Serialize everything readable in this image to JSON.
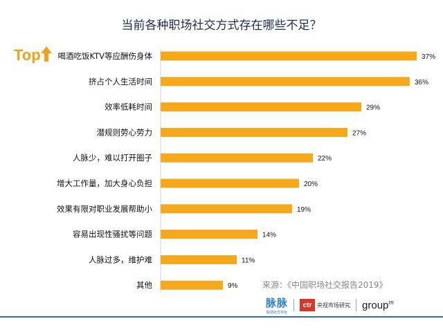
{
  "title": "当前各种职场社交方式存在哪些不足？",
  "top_badge": "Top",
  "source": "来源：《中国职场社交报告2019》",
  "logos": {
    "maimai": "脉脉",
    "maimai_sub": "职场社交平台",
    "ctr": "ctr",
    "ctr_name": "央视市场研究",
    "groupm": "group",
    "groupm_sup": "m"
  },
  "colors": {
    "bar": "#f5a81c",
    "title": "#1f2d4d",
    "accent": "#f0a21a",
    "rule": "#2f6eb8"
  },
  "chart_data": {
    "type": "bar",
    "orientation": "horizontal",
    "title": "当前各种职场社交方式存在哪些不足？",
    "categories": [
      "喝酒吃饭KTV等应酬伤身体",
      "挤占个人生活时间",
      "效率低耗时间",
      "潜规则劳心劳力",
      "人脉少，难以打开圈子",
      "增大工作量，加大身心负担",
      "效果有限对职业发展帮助小",
      "容易出现性骚扰等问题",
      "人脉过多，维护难",
      "其他"
    ],
    "values": [
      37,
      36,
      29,
      27,
      22,
      20,
      19,
      14,
      11,
      9
    ],
    "value_labels": [
      "37%",
      "36%",
      "29%",
      "27%",
      "22%",
      "20%",
      "19%",
      "14%",
      "11%",
      "9%"
    ],
    "unit": "%",
    "grid": false,
    "legend": "none"
  }
}
